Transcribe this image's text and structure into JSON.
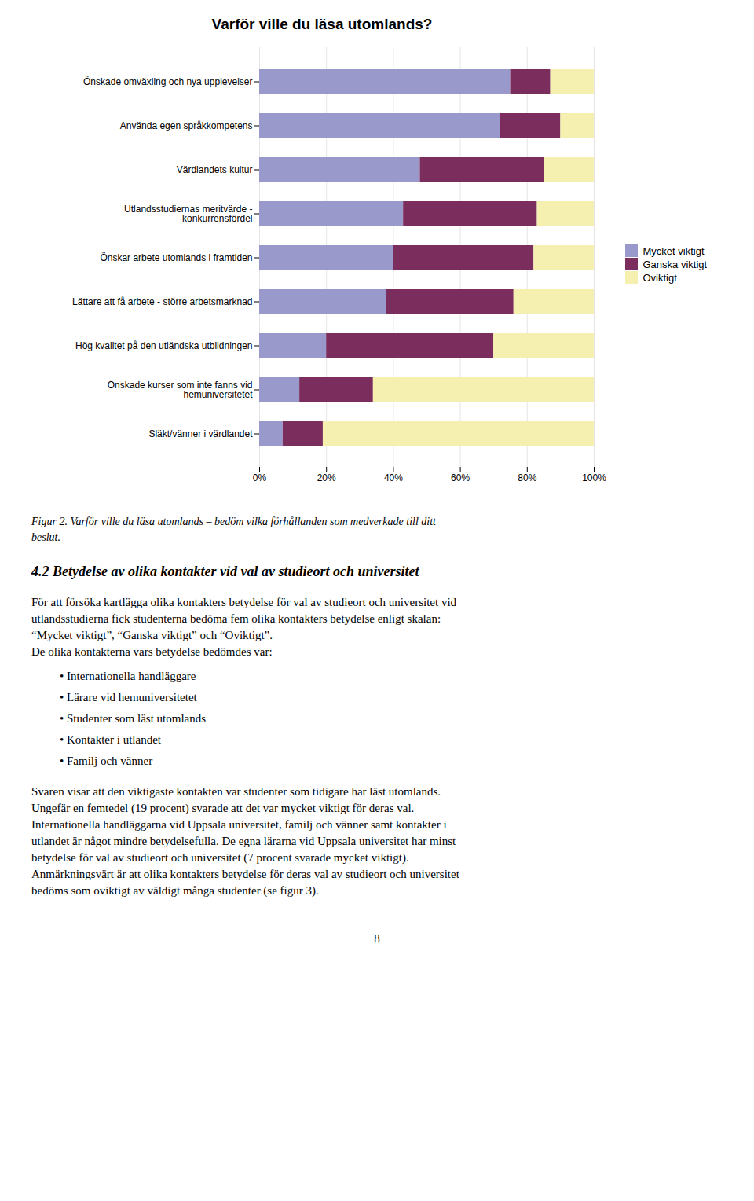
{
  "chart_data": {
    "type": "bar",
    "title": "Varför ville du läsa utomlands?",
    "orientation": "horizontal",
    "stacked": true,
    "grid": true,
    "legend": "right",
    "categories": [
      "Önskade omväxling och nya upplevelser",
      "Använda egen språkkompetens",
      "Värdlandets kultur",
      "Utlandsstudiernas meritvärde -\nkonkurrensfördel",
      "Önskar arbete utomlands i framtiden",
      "Lättare att få arbete - större arbetsmarknad",
      "Hög kvalitet på den utländska utbildningen",
      "Önskade kurser som inte fanns vid\nhemuniversitetet",
      "Släkt/vänner i värdlandet"
    ],
    "series": [
      {
        "name": "Mycket viktigt",
        "color": "#9999CC",
        "values": [
          75,
          72,
          48,
          43,
          40,
          38,
          20,
          12,
          7
        ]
      },
      {
        "name": "Ganska viktigt",
        "color": "#7B2D5E",
        "values": [
          12,
          18,
          37,
          40,
          42,
          38,
          50,
          22,
          12
        ]
      },
      {
        "name": "Oviktigt",
        "color": "#F5F0B0",
        "values": [
          13,
          10,
          15,
          17,
          18,
          24,
          30,
          66,
          81
        ]
      }
    ],
    "xlim": [
      0,
      100
    ],
    "xticks": [
      {
        "value": 0,
        "label": "0%"
      },
      {
        "value": 20,
        "label": "20%"
      },
      {
        "value": 40,
        "label": "40%"
      },
      {
        "value": 60,
        "label": "60%"
      },
      {
        "value": 80,
        "label": "80%"
      },
      {
        "value": 100,
        "label": "100%"
      }
    ],
    "annotations": [
      "Figur 2. Varför ville du läsa utomlands – bedöm vilka förhållanden som medverkade till ditt\nbeslut.",
      "4.2 Betydelse av olika kontakter vid val av studieort och universitet",
      "För att försöka kartlägga olika kontakters betydelse för val av studieort och universitet vid\nutlandsstudierna fick studenterna bedöma fem olika kontakters betydelse enligt skalan:\n“Mycket viktigt”, “Ganska viktigt” och “Oviktigt”.\nDe olika kontakterna vars betydelse bedömdes var:",
      "•  Internationella handläggare",
      "•  Lärare vid hemuniversitetet",
      "•  Studenter som läst utomlands",
      "•  Kontakter i utlandet",
      "•  Familj och vänner",
      "Svaren visar att den viktigaste kontakten var studenter som tidigare har läst utomlands.\nUngefär en femtedel (19 procent) svarade att det var mycket viktigt för deras val.\nInternationella handläggarna vid Uppsala universitet, familj och vänner samt kontakter i\nutlandet är något mindre betydelsefulla. De egna lärarna vid Uppsala universitet har minst\nbetydelse för val av studieort och universitet (7 procent svarade mycket viktigt).\nAnmärkningsvärt är att olika kontakters betydelse för deras val av studieort och universitet\nbedöms som oviktigt av väldigt många studenter (se figur 3).",
      "8"
    ]
  }
}
